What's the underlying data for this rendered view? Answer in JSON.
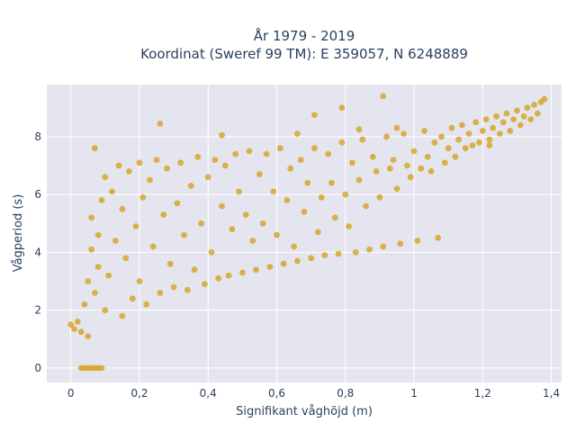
{
  "chart_data": {
    "type": "scatter",
    "title_line1": "År 1979 - 2019",
    "title_line2": "Koordinat (Sweref 99 TM): E 359057, N 6248889",
    "xlabel": "Signifikant våghöjd (m)",
    "ylabel": "Vågperiod (s)",
    "xlim": [
      -0.07,
      1.43
    ],
    "ylim": [
      -0.5,
      9.8
    ],
    "grid": true,
    "legend": "none",
    "x_ticks": [
      {
        "value": 0,
        "label": "0"
      },
      {
        "value": 0.2,
        "label": "0,2"
      },
      {
        "value": 0.4,
        "label": "0,4"
      },
      {
        "value": 0.6,
        "label": "0,6"
      },
      {
        "value": 0.8,
        "label": "0,8"
      },
      {
        "value": 1.0,
        "label": "1"
      },
      {
        "value": 1.2,
        "label": "1,2"
      },
      {
        "value": 1.4,
        "label": "1,4"
      }
    ],
    "y_ticks": [
      {
        "value": 0,
        "label": "0"
      },
      {
        "value": 2,
        "label": "2"
      },
      {
        "value": 4,
        "label": "4"
      },
      {
        "value": 6,
        "label": "6"
      },
      {
        "value": 8,
        "label": "8"
      }
    ],
    "marker_color": "#d4a21f",
    "background_color": "#e5e5f0",
    "series": [
      {
        "points": [
          [
            0.0,
            1.5
          ],
          [
            0.01,
            1.35
          ],
          [
            0.02,
            1.6
          ],
          [
            0.03,
            1.25
          ],
          [
            0.04,
            2.2
          ],
          [
            0.05,
            1.1
          ],
          [
            0.05,
            3.0
          ],
          [
            0.06,
            4.1
          ],
          [
            0.06,
            5.2
          ],
          [
            0.07,
            2.6
          ],
          [
            0.08,
            3.5
          ],
          [
            0.08,
            4.6
          ],
          [
            0.09,
            5.8
          ],
          [
            0.1,
            6.6
          ],
          [
            0.1,
            2.0
          ],
          [
            0.11,
            3.2
          ],
          [
            0.12,
            6.1
          ],
          [
            0.13,
            4.4
          ],
          [
            0.14,
            7.0
          ],
          [
            0.15,
            1.8
          ],
          [
            0.15,
            5.5
          ],
          [
            0.16,
            3.8
          ],
          [
            0.17,
            6.8
          ],
          [
            0.18,
            2.4
          ],
          [
            0.19,
            4.9
          ],
          [
            0.2,
            7.1
          ],
          [
            0.2,
            3.0
          ],
          [
            0.21,
            5.9
          ],
          [
            0.22,
            2.2
          ],
          [
            0.23,
            6.5
          ],
          [
            0.24,
            4.2
          ],
          [
            0.25,
            7.2
          ],
          [
            0.26,
            2.6
          ],
          [
            0.27,
            5.3
          ],
          [
            0.28,
            6.9
          ],
          [
            0.29,
            3.6
          ],
          [
            0.3,
            2.8
          ],
          [
            0.31,
            5.7
          ],
          [
            0.32,
            7.1
          ],
          [
            0.33,
            4.6
          ],
          [
            0.34,
            2.7
          ],
          [
            0.35,
            6.3
          ],
          [
            0.36,
            3.4
          ],
          [
            0.37,
            7.3
          ],
          [
            0.38,
            5.0
          ],
          [
            0.39,
            2.9
          ],
          [
            0.4,
            6.6
          ],
          [
            0.41,
            4.0
          ],
          [
            0.42,
            7.2
          ],
          [
            0.43,
            3.1
          ],
          [
            0.44,
            5.6
          ],
          [
            0.45,
            7.0
          ],
          [
            0.46,
            3.2
          ],
          [
            0.47,
            4.8
          ],
          [
            0.48,
            7.4
          ],
          [
            0.49,
            6.1
          ],
          [
            0.5,
            3.3
          ],
          [
            0.51,
            5.3
          ],
          [
            0.52,
            7.5
          ],
          [
            0.53,
            4.4
          ],
          [
            0.54,
            3.4
          ],
          [
            0.55,
            6.7
          ],
          [
            0.56,
            5.0
          ],
          [
            0.57,
            7.4
          ],
          [
            0.58,
            3.5
          ],
          [
            0.59,
            6.1
          ],
          [
            0.6,
            4.6
          ],
          [
            0.61,
            7.6
          ],
          [
            0.62,
            3.6
          ],
          [
            0.63,
            5.8
          ],
          [
            0.64,
            6.9
          ],
          [
            0.65,
            4.2
          ],
          [
            0.66,
            3.7
          ],
          [
            0.67,
            7.2
          ],
          [
            0.68,
            5.4
          ],
          [
            0.69,
            6.4
          ],
          [
            0.7,
            3.8
          ],
          [
            0.71,
            7.6
          ],
          [
            0.72,
            4.7
          ],
          [
            0.73,
            5.9
          ],
          [
            0.74,
            3.9
          ],
          [
            0.75,
            7.4
          ],
          [
            0.76,
            6.4
          ],
          [
            0.77,
            5.2
          ],
          [
            0.78,
            3.95
          ],
          [
            0.79,
            7.8
          ],
          [
            0.8,
            6.0
          ],
          [
            0.81,
            4.9
          ],
          [
            0.82,
            7.1
          ],
          [
            0.83,
            4.0
          ],
          [
            0.84,
            6.5
          ],
          [
            0.85,
            7.9
          ],
          [
            0.86,
            5.6
          ],
          [
            0.87,
            4.1
          ],
          [
            0.88,
            7.3
          ],
          [
            0.89,
            6.8
          ],
          [
            0.9,
            5.9
          ],
          [
            0.91,
            4.2
          ],
          [
            0.92,
            8.0
          ],
          [
            0.93,
            6.9
          ],
          [
            0.94,
            7.2
          ],
          [
            0.95,
            6.2
          ],
          [
            0.96,
            4.3
          ],
          [
            0.97,
            8.1
          ],
          [
            0.98,
            7.0
          ],
          [
            0.99,
            6.6
          ],
          [
            1.0,
            7.5
          ],
          [
            1.01,
            4.4
          ],
          [
            1.02,
            6.9
          ],
          [
            1.03,
            8.2
          ],
          [
            1.04,
            7.3
          ],
          [
            1.05,
            6.8
          ],
          [
            1.06,
            7.8
          ],
          [
            1.07,
            4.5
          ],
          [
            1.08,
            8.0
          ],
          [
            1.09,
            7.1
          ],
          [
            1.1,
            7.6
          ],
          [
            1.11,
            8.3
          ],
          [
            1.12,
            7.3
          ],
          [
            1.13,
            7.9
          ],
          [
            1.14,
            8.4
          ],
          [
            1.15,
            7.6
          ],
          [
            1.16,
            8.1
          ],
          [
            1.17,
            7.7
          ],
          [
            1.18,
            8.5
          ],
          [
            1.19,
            7.8
          ],
          [
            1.2,
            8.2
          ],
          [
            1.21,
            8.6
          ],
          [
            1.22,
            7.9
          ],
          [
            1.23,
            8.3
          ],
          [
            1.24,
            8.7
          ],
          [
            1.25,
            8.1
          ],
          [
            1.26,
            8.5
          ],
          [
            1.27,
            8.8
          ],
          [
            1.28,
            8.2
          ],
          [
            1.29,
            8.6
          ],
          [
            1.3,
            8.9
          ],
          [
            1.31,
            8.4
          ],
          [
            1.32,
            8.7
          ],
          [
            1.33,
            9.0
          ],
          [
            1.34,
            8.6
          ],
          [
            1.35,
            9.1
          ],
          [
            1.36,
            8.8
          ],
          [
            1.37,
            9.2
          ],
          [
            1.38,
            9.3
          ],
          [
            0.03,
            0.0
          ],
          [
            0.04,
            0.0
          ],
          [
            0.05,
            0.0
          ],
          [
            0.06,
            0.0
          ],
          [
            0.07,
            0.0
          ],
          [
            0.08,
            0.0
          ],
          [
            0.09,
            0.0
          ],
          [
            0.07,
            7.6
          ],
          [
            0.26,
            8.45
          ],
          [
            0.44,
            8.05
          ],
          [
            0.66,
            8.1
          ],
          [
            0.71,
            8.75
          ],
          [
            0.79,
            9.0
          ],
          [
            0.84,
            8.25
          ],
          [
            0.91,
            9.4
          ],
          [
            0.95,
            8.3
          ],
          [
            1.22,
            7.7
          ]
        ]
      }
    ]
  }
}
